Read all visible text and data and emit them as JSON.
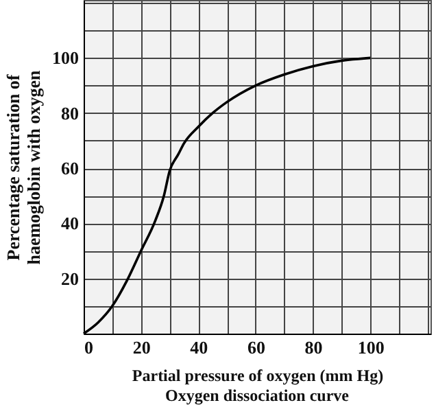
{
  "chart_data": {
    "type": "line",
    "title": "Oxygen dissociation curve",
    "xlabel": "Partial pressure of oxygen (mm Hg)",
    "ylabel": "Percentage saturation of\nhaemoglobin with oxygen",
    "x": [
      0,
      5,
      10,
      15,
      20,
      25,
      28,
      30,
      33,
      35,
      40,
      45,
      50,
      60,
      70,
      80,
      90,
      100
    ],
    "series": [
      {
        "color": "#000000",
        "values": [
          0,
          4,
          10,
          19,
          30,
          41,
          50,
          59,
          65,
          69,
          75,
          80,
          84,
          90,
          94,
          97,
          99,
          100
        ]
      }
    ],
    "xlim": [
      0,
      121
    ],
    "ylim": [
      0,
      121
    ],
    "xticks": [
      0,
      {
        "value": 10,
        "label": null
      },
      20,
      {
        "value": 30,
        "label": null
      },
      40,
      {
        "value": 50,
        "label": null
      },
      60,
      {
        "value": 70,
        "label": null
      },
      80,
      {
        "value": 90,
        "label": null
      },
      100,
      {
        "value": 110,
        "label": null
      },
      {
        "value": 120,
        "label": null
      }
    ],
    "yticks": [
      {
        "value": 0,
        "label": null
      },
      {
        "value": 10,
        "label": null
      },
      20,
      {
        "value": 30,
        "label": null
      },
      40,
      {
        "value": 50,
        "label": null
      },
      60,
      {
        "value": 70,
        "label": null
      },
      80,
      {
        "value": 90,
        "label": null
      },
      100,
      {
        "value": 110,
        "label": null
      },
      {
        "value": 120,
        "label": null
      }
    ],
    "grid": true,
    "marker": "none",
    "line_style": "solid"
  }
}
